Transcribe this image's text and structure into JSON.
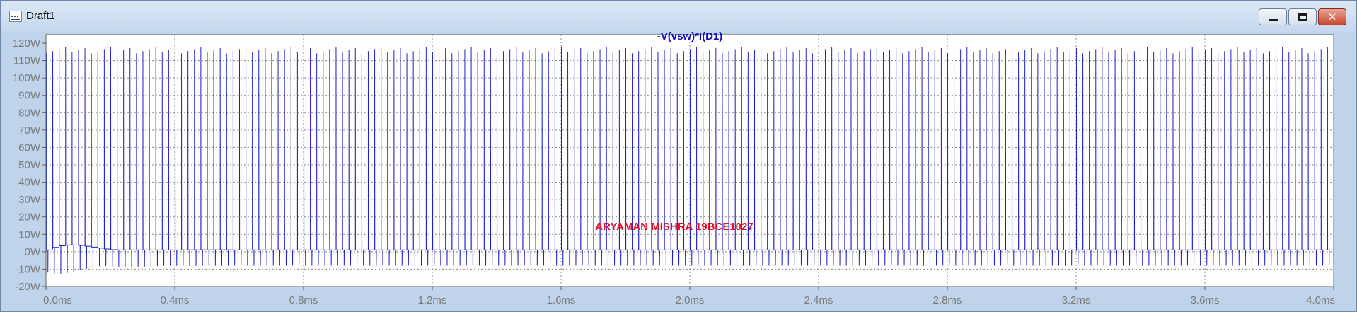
{
  "window": {
    "title": "Draft1",
    "minimize_icon": "minimize-icon",
    "maximize_icon": "maximize-icon",
    "close_icon": "close-icon"
  },
  "chart_data": {
    "type": "line",
    "title": "-V(vsw)*I(D1)",
    "annotation": "ARYAMAN MISHRA 19BCE1027",
    "xlabel": "",
    "ylabel": "",
    "xlim": [
      0.0,
      4.0
    ],
    "ylim": [
      -20,
      120
    ],
    "x_unit": "ms",
    "y_unit": "W",
    "x_ticks": [
      "0.0ms",
      "0.4ms",
      "0.8ms",
      "1.2ms",
      "1.6ms",
      "2.0ms",
      "2.4ms",
      "2.8ms",
      "3.2ms",
      "3.6ms",
      "4.0ms"
    ],
    "y_ticks": [
      "-20W",
      "-10W",
      "0W",
      "10W",
      "20W",
      "30W",
      "40W",
      "50W",
      "60W",
      "70W",
      "80W",
      "90W",
      "100W",
      "110W",
      "120W"
    ],
    "grid": true,
    "series": [
      {
        "color": "#2020d0",
        "description": "switching pulses at 50 kHz period 0.02 ms",
        "period_ms": 0.02,
        "peak_w": 116,
        "baseline_w": 1,
        "trough_w": -8,
        "startup_peak_w": 6,
        "startup_trough_w": -15
      }
    ],
    "colors": {
      "trace": "#2020d0",
      "title": "#1010c0",
      "annotation": "#e0102a",
      "grid": "#8a8a8a",
      "axis_text": "#7a7a7a"
    }
  }
}
